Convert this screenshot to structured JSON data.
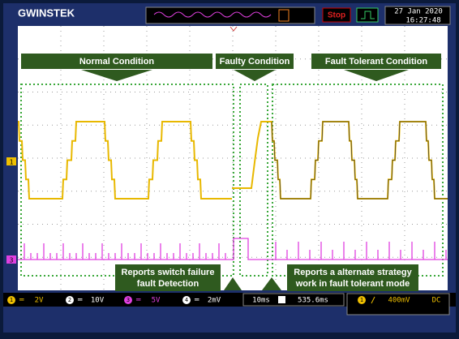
{
  "header": {
    "brand": "GWINSTEK",
    "status": "Stop",
    "date": "27 Jan 2020",
    "time": "16:27:48"
  },
  "banners": [
    "Normal Condition",
    "Faulty Condition",
    "Fault Tolerant Condition"
  ],
  "callouts": [
    {
      "lines": [
        "Reports switch failure",
        "fault Detection"
      ]
    },
    {
      "lines": [
        "Reports a alternate strategy",
        "work in fault tolerant mode"
      ]
    }
  ],
  "channels": [
    {
      "number": "1",
      "scale": "2V"
    },
    {
      "number": "2",
      "scale": "10V"
    },
    {
      "number": "3",
      "scale": "5V"
    },
    {
      "number": "4",
      "scale": "2mV"
    }
  ],
  "timebase": {
    "scale": "10ms",
    "position": "535.6ms"
  },
  "trigger": {
    "channel": "1",
    "level": "400mV",
    "coupling": "DC"
  }
}
